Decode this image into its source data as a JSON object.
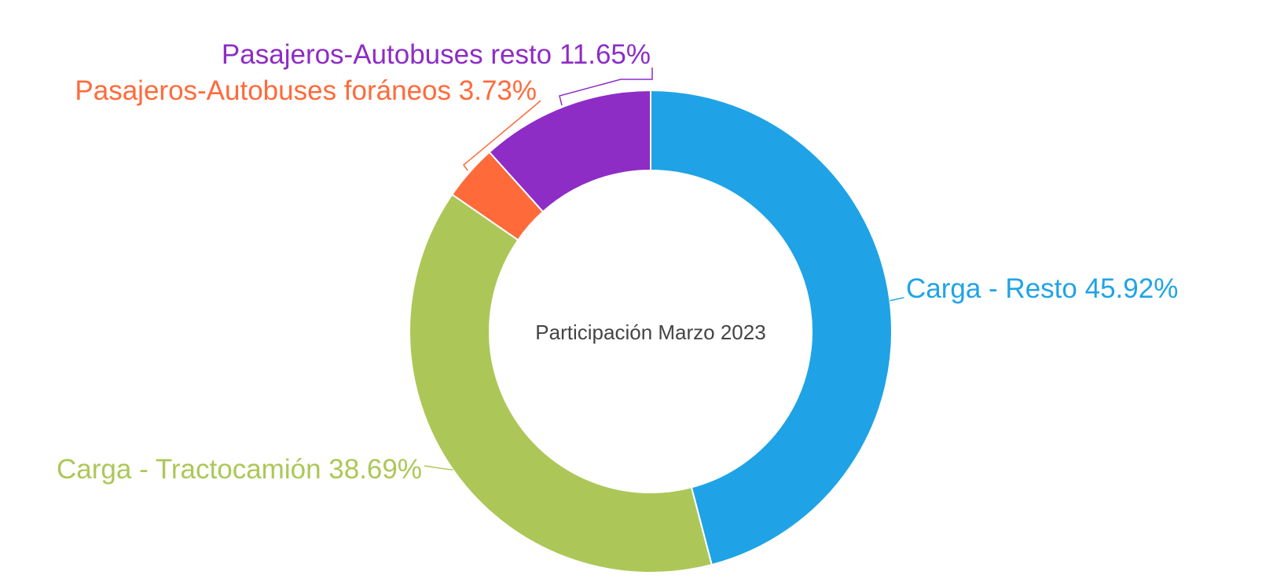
{
  "chart_data": {
    "type": "donut",
    "title": "Participación Marzo 2023",
    "categories": [
      "Carga - Resto",
      "Carga - Tractocamión",
      "Pasajeros-Autobuses foráneos",
      "Pasajeros-Autobuses resto"
    ],
    "values": [
      45.92,
      38.69,
      3.73,
      11.65
    ],
    "value_labels": [
      "45.92%",
      "38.69%",
      "3.73%",
      "11.65%"
    ],
    "colors": [
      "#1fa3e6",
      "#acc758",
      "#ff6a3a",
      "#8e2cc6"
    ]
  }
}
